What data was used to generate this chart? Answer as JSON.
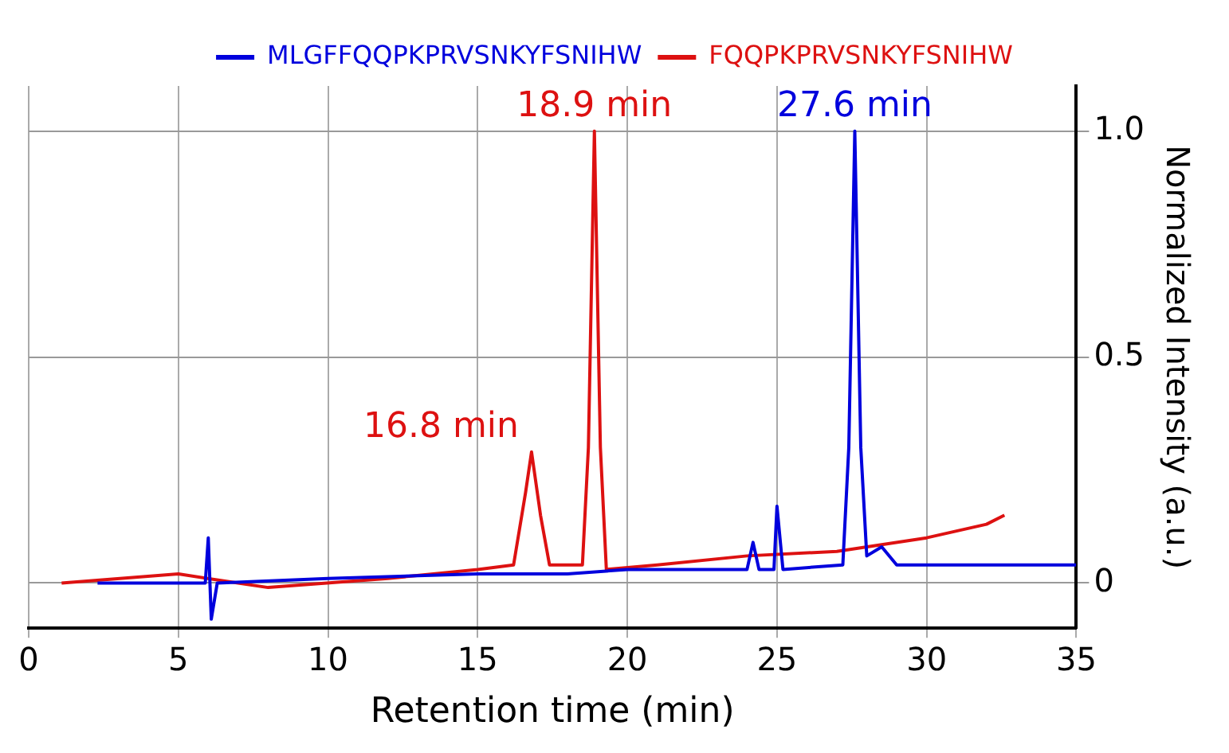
{
  "chart_data": {
    "type": "line",
    "xlabel": "Retention time (min)",
    "ylabel": "Normalized Intensity (a.u.)",
    "xlim": [
      0,
      35
    ],
    "xticks": [
      0,
      5,
      10,
      15,
      20,
      25,
      30,
      35
    ],
    "ylim": [
      -0.1,
      1.1
    ],
    "yticks": [
      0,
      0.5,
      {
        "value": 1,
        "label": "1.0"
      }
    ],
    "grid": true,
    "legend": "top",
    "marker": "none",
    "line_style": "solid",
    "series": [
      {
        "name": "MLGFFQQPKPRVSNKYFSNIHW",
        "color": "#0000dd",
        "x": [
          2.3,
          5.9,
          6.0,
          6.1,
          6.3,
          10,
          15,
          18,
          20,
          23,
          24,
          24.2,
          24.4,
          24.9,
          25.0,
          25.2,
          27.2,
          27.4,
          27.6,
          27.8,
          28.0,
          28.5,
          29,
          31,
          35
        ],
        "values": [
          0,
          0,
          0.1,
          -0.08,
          0,
          0.01,
          0.02,
          0.02,
          0.03,
          0.03,
          0.03,
          0.09,
          0.03,
          0.03,
          0.17,
          0.03,
          0.04,
          0.3,
          1.0,
          0.3,
          0.06,
          0.08,
          0.04,
          0.04,
          0.04
        ]
      },
      {
        "name": "FQQPKPRVSNKYFSNIHW",
        "color": "#dd1111",
        "x": [
          1.1,
          5,
          7,
          8,
          12,
          15,
          16.2,
          16.6,
          16.8,
          17.1,
          17.4,
          18.5,
          18.7,
          18.9,
          19.1,
          19.3,
          21,
          24,
          27,
          30,
          32,
          32.6
        ],
        "values": [
          0,
          0.02,
          0,
          -0.01,
          0.01,
          0.03,
          0.04,
          0.2,
          0.29,
          0.15,
          0.04,
          0.04,
          0.3,
          1.0,
          0.3,
          0.03,
          0.04,
          0.06,
          0.07,
          0.1,
          0.13,
          0.15
        ]
      }
    ],
    "annotations": [
      {
        "text": "27.6 min",
        "x": 27.6,
        "y": 1.0
      },
      {
        "text": "18.9 min",
        "x": 18.9,
        "y": 1.0
      },
      {
        "text": "16.8 min",
        "x": 16.8,
        "y": 0.29
      }
    ]
  }
}
